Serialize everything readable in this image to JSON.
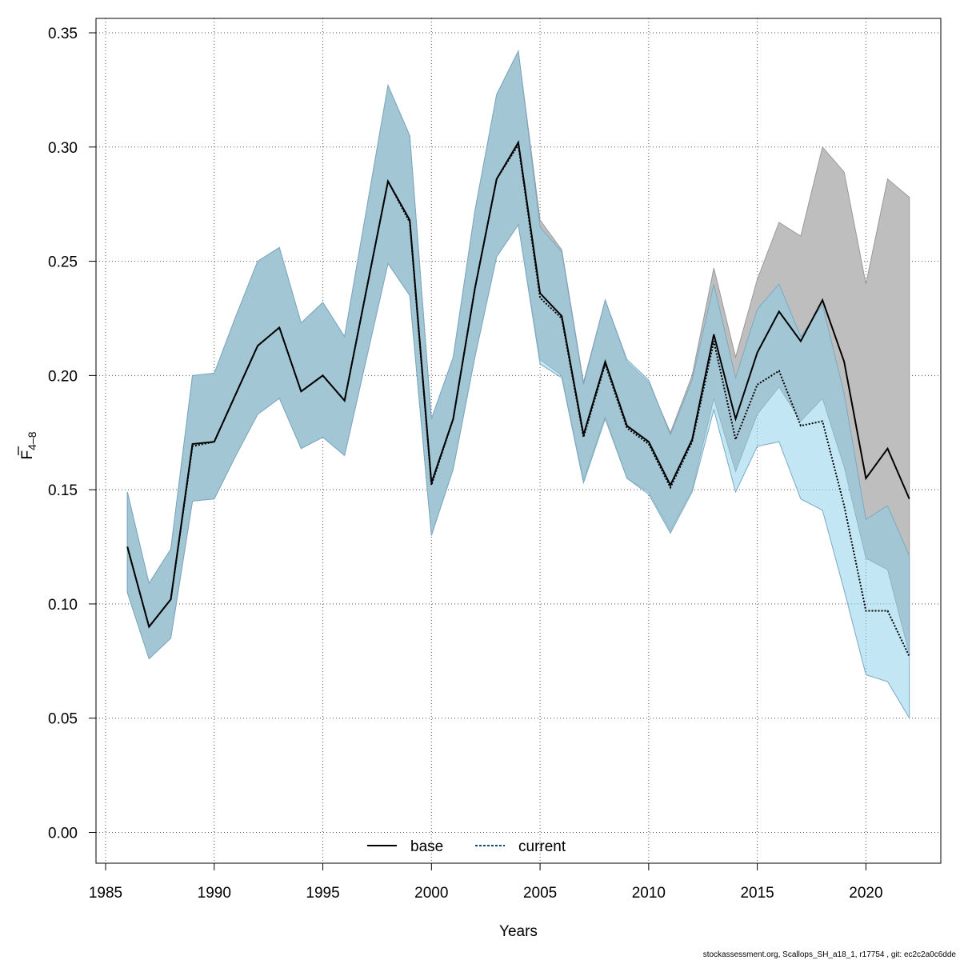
{
  "chart_data": {
    "type": "line",
    "xlabel": "Years",
    "ylabel": {
      "main": "F",
      "subscript": "4–8",
      "overline": true
    },
    "xlim": [
      1985,
      2022
    ],
    "ylim": [
      0,
      0.35
    ],
    "x_ticks": [
      1985,
      1990,
      1995,
      2000,
      2005,
      2010,
      2015,
      2020
    ],
    "y_ticks": [
      0.0,
      0.05,
      0.1,
      0.15,
      0.2,
      0.25,
      0.3,
      0.35
    ],
    "y_tick_labels": [
      "0.00",
      "0.05",
      "0.10",
      "0.15",
      "0.20",
      "0.25",
      "0.30",
      "0.35"
    ],
    "grid": true,
    "legend_position": "bottom-center",
    "x": [
      1986,
      1987,
      1988,
      1989,
      1990,
      1991,
      1992,
      1993,
      1994,
      1995,
      1996,
      1997,
      1998,
      1999,
      2000,
      2001,
      2002,
      2003,
      2004,
      2005,
      2006,
      2007,
      2008,
      2009,
      2010,
      2011,
      2012,
      2013,
      2014,
      2015,
      2016,
      2017,
      2018,
      2019,
      2020,
      2021,
      2022
    ],
    "series": [
      {
        "name": "base",
        "line_color": "#000000",
        "line_style": "solid",
        "band_color": "#bebebe",
        "values": [
          0.125,
          0.09,
          0.102,
          0.17,
          0.171,
          0.192,
          0.213,
          0.221,
          0.193,
          0.2,
          0.189,
          0.237,
          0.285,
          0.268,
          0.153,
          0.181,
          0.238,
          0.286,
          0.302,
          0.236,
          0.226,
          0.174,
          0.206,
          0.178,
          0.171,
          0.152,
          0.172,
          0.218,
          0.181,
          0.21,
          0.228,
          0.215,
          0.233,
          0.206,
          0.155,
          0.168,
          0.146
        ],
        "lower": [
          0.105,
          0.076,
          0.085,
          0.145,
          0.146,
          0.165,
          0.183,
          0.19,
          0.168,
          0.173,
          0.165,
          0.207,
          0.249,
          0.235,
          0.13,
          0.159,
          0.208,
          0.252,
          0.266,
          0.207,
          0.2,
          0.154,
          0.182,
          0.155,
          0.149,
          0.132,
          0.15,
          0.19,
          0.158,
          0.183,
          0.195,
          0.18,
          0.19,
          0.16,
          0.12,
          0.115,
          0.078
        ],
        "upper": [
          0.149,
          0.109,
          0.124,
          0.2,
          0.201,
          0.226,
          0.25,
          0.256,
          0.223,
          0.232,
          0.217,
          0.272,
          0.327,
          0.305,
          0.181,
          0.208,
          0.272,
          0.323,
          0.342,
          0.268,
          0.255,
          0.197,
          0.233,
          0.206,
          0.197,
          0.175,
          0.2,
          0.247,
          0.208,
          0.242,
          0.267,
          0.261,
          0.3,
          0.289,
          0.24,
          0.286,
          0.278
        ]
      },
      {
        "name": "current",
        "line_color": "#0a4a75",
        "line_style": "dotted",
        "band_color": "#87ceeb",
        "values": [
          0.125,
          0.09,
          0.102,
          0.169,
          0.171,
          0.192,
          0.213,
          0.221,
          0.193,
          0.2,
          0.189,
          0.237,
          0.285,
          0.267,
          0.152,
          0.181,
          0.238,
          0.286,
          0.301,
          0.234,
          0.225,
          0.173,
          0.205,
          0.177,
          0.17,
          0.151,
          0.171,
          0.215,
          0.172,
          0.196,
          0.202,
          0.178,
          0.18,
          0.143,
          0.097,
          0.097,
          0.077
        ],
        "lower": [
          0.105,
          0.076,
          0.085,
          0.145,
          0.146,
          0.165,
          0.183,
          0.19,
          0.168,
          0.173,
          0.165,
          0.207,
          0.249,
          0.235,
          0.13,
          0.159,
          0.208,
          0.252,
          0.266,
          0.205,
          0.199,
          0.153,
          0.181,
          0.155,
          0.148,
          0.131,
          0.149,
          0.185,
          0.149,
          0.169,
          0.171,
          0.146,
          0.141,
          0.106,
          0.069,
          0.066,
          0.05
        ],
        "upper": [
          0.149,
          0.109,
          0.124,
          0.2,
          0.201,
          0.226,
          0.25,
          0.256,
          0.223,
          0.232,
          0.217,
          0.272,
          0.327,
          0.305,
          0.181,
          0.208,
          0.272,
          0.323,
          0.342,
          0.265,
          0.254,
          0.196,
          0.233,
          0.207,
          0.198,
          0.174,
          0.198,
          0.24,
          0.199,
          0.229,
          0.24,
          0.217,
          0.231,
          0.192,
          0.137,
          0.143,
          0.121
        ]
      }
    ]
  },
  "footer": "stockassessment.org, Scallops_SH_a18_1, r17754 , git: ec2c2a0c6dde"
}
